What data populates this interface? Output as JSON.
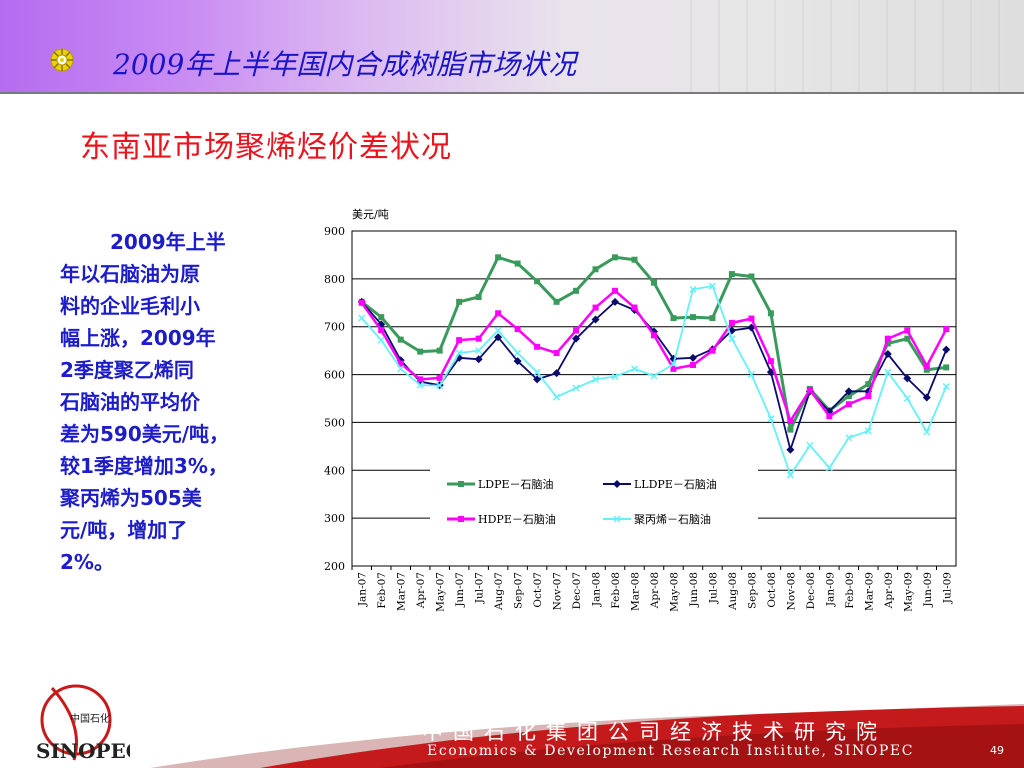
{
  "header": {
    "title": "2009年上半年国内合成树脂市场状况"
  },
  "subtitle": "东南亚市场聚烯烃价差状况",
  "body_lines": [
    "2009年上半",
    "年以石脑油为原",
    "料的企业毛利小",
    "幅上涨，2009年",
    "2季度聚乙烯同",
    "石脑油的平均价",
    "差为590美元/吨，",
    "较1季度增加3%，",
    "聚丙烯为505美",
    "元/吨，增加了",
    "2%。"
  ],
  "footer": {
    "org_cn": "中国石化集团公司经济技术研究院",
    "org_en": "Economics & Development Research Institute, SINOPEC",
    "page_number": "49",
    "logo_text": "中国石化"
  },
  "colors": {
    "ldpe": "#3a9a5c",
    "lldpe": "#0b0b6e",
    "hdpe": "#ff00ff",
    "pp": "#66f0f8",
    "title_blue": "#1a14c8",
    "subtitle_red": "#e8141e",
    "footer_red": "#c41a1c"
  },
  "chart_data": {
    "type": "line",
    "ylabel": "美元/吨",
    "ylim": [
      200,
      900
    ],
    "yticks": [
      "900",
      "800",
      "700",
      "600",
      "500",
      "400",
      "300",
      "200"
    ],
    "categories": [
      "Jan-07",
      "Feb-07",
      "Mar-07",
      "Apr-07",
      "May-07",
      "Jun-07",
      "Jul-07",
      "Aug-07",
      "Sep-07",
      "Oct-07",
      "Nov-07",
      "Dec-07",
      "Jan-08",
      "Feb-08",
      "Mar-08",
      "Apr-08",
      "May-08",
      "Jun-08",
      "Jul-08",
      "Aug-08",
      "Sep-08",
      "Oct-08",
      "Nov-08",
      "Dec-08",
      "Jan-09",
      "Feb-09",
      "Mar-09",
      "Apr-09",
      "May-09",
      "Jun-09",
      "Jul-09"
    ],
    "legend_position": "lower-center",
    "grid": true,
    "series": [
      {
        "name": "LDPE－石脑油",
        "color": "#3a9a5c",
        "marker": "square",
        "values": [
          752,
          720,
          673,
          648,
          650,
          752,
          762,
          845,
          832,
          795,
          752,
          775,
          820,
          845,
          840,
          792,
          718,
          720,
          718,
          810,
          805,
          728,
          485,
          570,
          525,
          555,
          580,
          665,
          675,
          610,
          615
        ]
      },
      {
        "name": "LLDPE－石脑油",
        "color": "#0b0b6e",
        "marker": "diamond",
        "values": [
          752,
          705,
          630,
          585,
          578,
          635,
          632,
          678,
          628,
          590,
          603,
          675,
          715,
          752,
          735,
          690,
          633,
          635,
          653,
          692,
          698,
          605,
          443,
          565,
          523,
          565,
          565,
          643,
          592,
          552,
          652
        ]
      },
      {
        "name": "HDPE－石脑油",
        "color": "#ff00ff",
        "marker": "square",
        "values": [
          750,
          693,
          623,
          590,
          593,
          672,
          675,
          728,
          695,
          658,
          645,
          692,
          740,
          775,
          740,
          682,
          612,
          620,
          650,
          708,
          717,
          628,
          503,
          568,
          513,
          538,
          555,
          675,
          692,
          618,
          695
        ]
      },
      {
        "name": "聚丙烯－石脑油",
        "color": "#66f0f8",
        "marker": "x",
        "values": [
          718,
          672,
          612,
          578,
          577,
          645,
          650,
          692,
          645,
          605,
          553,
          572,
          590,
          596,
          612,
          597,
          622,
          778,
          785,
          675,
          600,
          508,
          390,
          452,
          405,
          468,
          482,
          605,
          550,
          480,
          575
        ]
      }
    ]
  }
}
